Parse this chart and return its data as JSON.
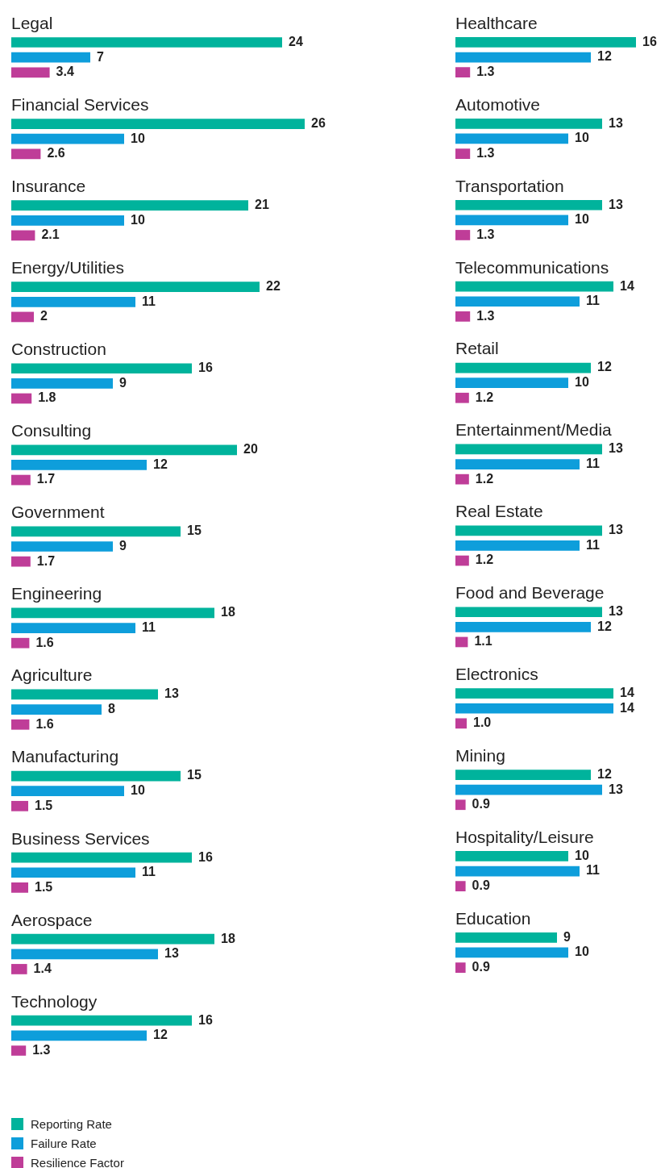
{
  "chart_data": [
    {
      "type": "bar",
      "orientation": "horizontal",
      "legend": "bottom left",
      "tick_labels": "y",
      "categories": [
        "Legal",
        "Financial Services",
        "Insurance",
        "Energy/Utilities",
        "Construction",
        "Consulting",
        "Government",
        "Engineering",
        "Agriculture",
        "Manufacturing",
        "Business Services",
        "Aerospace",
        "Technology"
      ],
      "series": [
        {
          "name": "Reporting Rate",
          "color": "#00b39c",
          "values": [
            24,
            26,
            21,
            22,
            16,
            20,
            15,
            18,
            13,
            15,
            16,
            18,
            16
          ],
          "value_labels": [
            "24",
            "26",
            "21",
            "22",
            "16",
            "20",
            "15",
            "18",
            "13",
            "15",
            "16",
            "18",
            "16"
          ]
        },
        {
          "name": "Failure Rate",
          "color": "#0e9edb",
          "values": [
            7,
            10,
            10,
            11,
            9,
            12,
            9,
            11,
            8,
            10,
            11,
            13,
            12
          ],
          "value_labels": [
            "7",
            "10",
            "10",
            "11",
            "9",
            "12",
            "9",
            "11",
            "8",
            "10",
            "11",
            "13",
            "12"
          ]
        },
        {
          "name": "Resilience Factor",
          "color": "#bf3d98",
          "values": [
            3.4,
            2.6,
            2.1,
            2,
            1.8,
            1.7,
            1.7,
            1.6,
            1.6,
            1.5,
            1.5,
            1.4,
            1.3
          ],
          "value_labels": [
            "3.4",
            "2.6",
            "2.1",
            "2",
            "1.8",
            "1.7",
            "1.7",
            "1.6",
            "1.6",
            "1.5",
            "1.5",
            "1.4",
            "1.3"
          ]
        }
      ]
    },
    {
      "type": "bar",
      "orientation": "horizontal",
      "tick_labels": "y",
      "categories": [
        "Healthcare",
        "Automotive",
        "Transportation",
        "Telecommunications",
        "Retail",
        "Entertainment/Media",
        "Real Estate",
        "Food and Beverage",
        "Electronics",
        "Mining",
        "Hospitality/Leisure",
        "Education"
      ],
      "series": [
        {
          "color": "#00b39c",
          "values": [
            16,
            13,
            13,
            14,
            12,
            13,
            13,
            13,
            14,
            12,
            10,
            9
          ],
          "value_labels": [
            "16",
            "13",
            "13",
            "14",
            "12",
            "13",
            "13",
            "13",
            "14",
            "12",
            "10",
            "9"
          ]
        },
        {
          "color": "#0e9edb",
          "values": [
            12,
            10,
            10,
            11,
            10,
            11,
            11,
            12,
            14,
            13,
            11,
            10
          ],
          "value_labels": [
            "12",
            "10",
            "10",
            "11",
            "10",
            "11",
            "11",
            "12",
            "14",
            "13",
            "11",
            "10"
          ]
        },
        {
          "color": "#bf3d98",
          "values": [
            1.3,
            1.3,
            1.3,
            1.3,
            1.2,
            1.2,
            1.2,
            1.1,
            1.0,
            0.9,
            0.9,
            0.9
          ],
          "value_labels": [
            "1.3",
            "1.3",
            "1.3",
            "1.3",
            "1.2",
            "1.2",
            "1.2",
            "1.1",
            "1.0",
            "0.9",
            "0.9",
            "0.9"
          ]
        }
      ]
    }
  ]
}
